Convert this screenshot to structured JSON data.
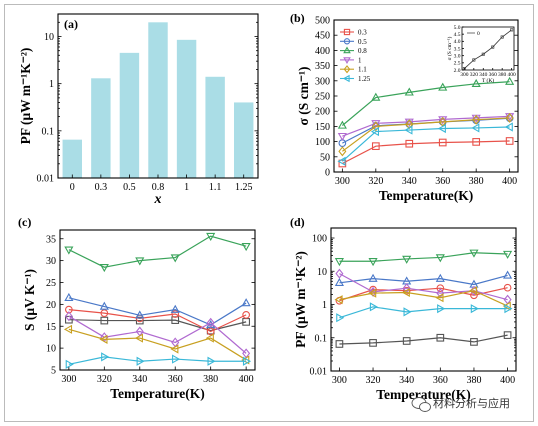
{
  "chart_data": [
    {
      "panel": "(a)",
      "type": "bar",
      "categories": [
        "0",
        "0.3",
        "0.5",
        "0.8",
        "1",
        "1.1",
        "1.25"
      ],
      "values": [
        0.065,
        1.3,
        4.5,
        20,
        8.5,
        1.4,
        0.4
      ],
      "xlabel": "x",
      "ylabel": "PF (μW m⁻¹K⁻²)",
      "yscale": "log",
      "ylim": [
        0.01,
        30
      ],
      "yticks": [
        "0.01",
        "0.1",
        "1",
        "10"
      ],
      "color": "#aadde6"
    },
    {
      "panel": "(b)",
      "type": "line",
      "x": [
        300,
        320,
        340,
        360,
        380,
        400
      ],
      "xlabel": "Temperature(K)",
      "ylabel": "σ (S cm⁻¹)",
      "ylim": [
        0,
        500
      ],
      "yticks": [
        "0",
        "50",
        "100",
        "150",
        "200",
        "250",
        "300",
        "350",
        "400",
        "450",
        "500"
      ],
      "xticks": [
        "300",
        "320",
        "340",
        "360",
        "380",
        "400"
      ],
      "legend_position": "top-left",
      "series": [
        {
          "name": "0.3",
          "color": "#e8524a",
          "marker": "square",
          "values": [
            28,
            85,
            93,
            97,
            99,
            102
          ]
        },
        {
          "name": "0.5",
          "color": "#4a78c8",
          "marker": "circle",
          "values": [
            95,
            152,
            158,
            165,
            170,
            177
          ]
        },
        {
          "name": "0.8",
          "color": "#3aa35a",
          "marker": "triangle-up",
          "values": [
            153,
            245,
            262,
            278,
            290,
            297
          ]
        },
        {
          "name": "1",
          "color": "#b06ad0",
          "marker": "triangle-down",
          "values": [
            118,
            160,
            165,
            173,
            178,
            183
          ]
        },
        {
          "name": "1.1",
          "color": "#c8a020",
          "marker": "diamond",
          "values": [
            68,
            150,
            157,
            165,
            172,
            178
          ]
        },
        {
          "name": "1.25",
          "color": "#3ab8d8",
          "marker": "triangle-left",
          "values": [
            35,
            133,
            138,
            143,
            145,
            148
          ]
        }
      ],
      "inset": {
        "label": "0",
        "ylabel": "σ (S cm⁻¹)",
        "xlabel": "T (K)",
        "x": [
          300,
          320,
          340,
          360,
          380,
          400
        ],
        "values": [
          2.1,
          2.7,
          3.1,
          3.6,
          4.3,
          4.8
        ],
        "ylim": [
          2.0,
          5.0
        ],
        "yticks": [
          "2.0",
          "2.5",
          "3.0",
          "3.5",
          "4.0",
          "4.5",
          "5.0"
        ],
        "xticks": [
          "300",
          "320",
          "340",
          "360",
          "380",
          "400"
        ]
      }
    },
    {
      "panel": "(c)",
      "type": "line",
      "x": [
        300,
        320,
        340,
        360,
        380,
        400
      ],
      "xlabel": "Temperature(K)",
      "ylabel": "S (μV K⁻¹)",
      "ylim": [
        5,
        37
      ],
      "yticks": [
        "5",
        "10",
        "15",
        "20",
        "25",
        "30",
        "35"
      ],
      "xticks": [
        "300",
        "320",
        "340",
        "360",
        "380",
        "400"
      ],
      "series": [
        {
          "color": "#555555",
          "marker": "square",
          "values": [
            16.5,
            16.3,
            16.3,
            16.4,
            14.0,
            16.0
          ]
        },
        {
          "color": "#e8524a",
          "marker": "circle",
          "values": [
            18.8,
            18.0,
            16.8,
            17.8,
            13.8,
            17.6
          ]
        },
        {
          "color": "#4a78c8",
          "marker": "triangle-up",
          "values": [
            21.5,
            19.5,
            17.5,
            18.8,
            15.3,
            20.3
          ]
        },
        {
          "color": "#3aa35a",
          "marker": "triangle-down",
          "values": [
            32.5,
            28.5,
            30.0,
            30.7,
            35.6,
            33.3
          ]
        },
        {
          "color": "#b06ad0",
          "marker": "diamond",
          "values": [
            17.3,
            12.5,
            13.8,
            11.3,
            15.8,
            8.8
          ]
        },
        {
          "color": "#c8a020",
          "marker": "triangle-left",
          "values": [
            14.3,
            12.0,
            12.3,
            9.8,
            12.3,
            7.3
          ]
        },
        {
          "color": "#3ab8d8",
          "marker": "triangle-right",
          "values": [
            6.3,
            8.0,
            7.0,
            7.5,
            7.0,
            7.0
          ]
        }
      ]
    },
    {
      "panel": "(d)",
      "type": "line",
      "x": [
        300,
        320,
        340,
        360,
        380,
        400
      ],
      "xlabel": "Temperature(K)",
      "ylabel": "PF (μW m⁻¹K⁻²)",
      "yscale": "log",
      "ylim": [
        0.01,
        200
      ],
      "yticks": [
        "0.01",
        "0.1",
        "1",
        "10",
        "100"
      ],
      "xticks": [
        "300",
        "320",
        "340",
        "360",
        "380",
        "400"
      ],
      "series": [
        {
          "color": "#555555",
          "marker": "square",
          "values": [
            0.065,
            0.07,
            0.08,
            0.1,
            0.075,
            0.12
          ]
        },
        {
          "color": "#e8524a",
          "marker": "circle",
          "values": [
            1.3,
            2.8,
            2.6,
            3.1,
            1.9,
            3.2
          ]
        },
        {
          "color": "#4a78c8",
          "marker": "triangle-up",
          "values": [
            4.5,
            6.0,
            5.0,
            6.0,
            4.0,
            7.5
          ]
        },
        {
          "color": "#3aa35a",
          "marker": "triangle-down",
          "values": [
            20,
            20,
            23.5,
            26,
            36,
            33
          ]
        },
        {
          "color": "#b06ad0",
          "marker": "diamond",
          "values": [
            8.5,
            2.4,
            3.1,
            2.2,
            2.6,
            1.4
          ]
        },
        {
          "color": "#c8a020",
          "marker": "triangle-left",
          "values": [
            1.4,
            2.2,
            2.3,
            1.6,
            2.6,
            0.9
          ]
        },
        {
          "color": "#3ab8d8",
          "marker": "triangle-right",
          "values": [
            0.4,
            0.85,
            0.6,
            0.75,
            0.75,
            0.75
          ]
        }
      ]
    }
  ],
  "watermark": {
    "text": "材料分析与应用",
    "icon": "wechat-icon"
  }
}
